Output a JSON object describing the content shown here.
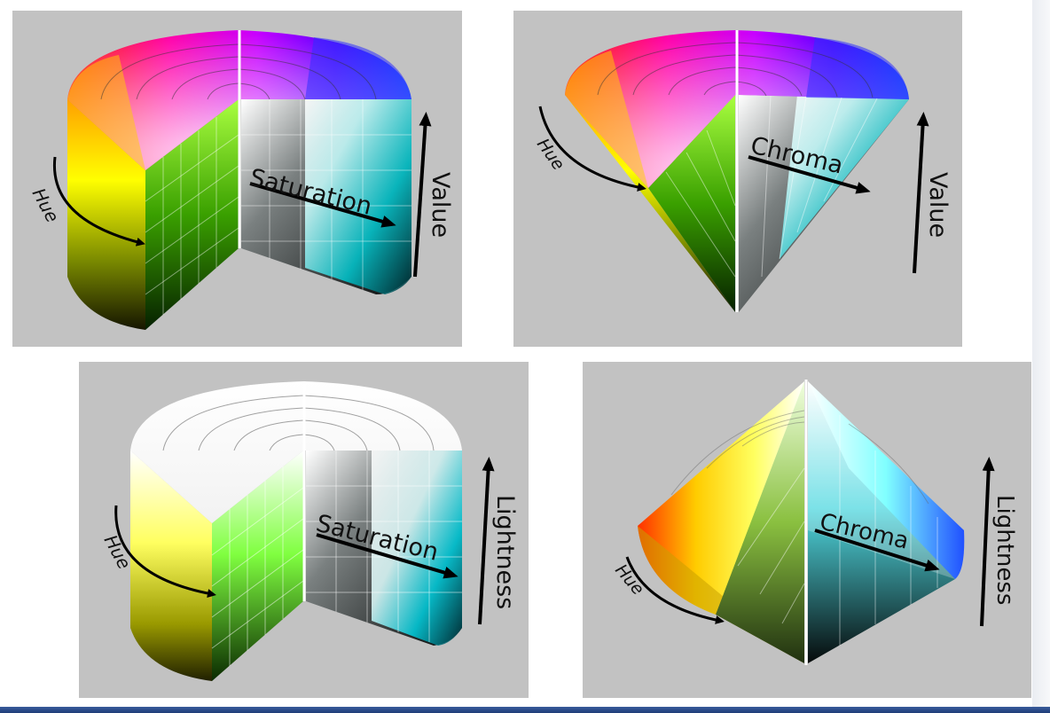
{
  "panels": [
    {
      "model": "HSV cylinder",
      "hue_label": "Hue",
      "radial_label": "Saturation",
      "vertical_label": "Value"
    },
    {
      "model": "HSV cone",
      "hue_label": "Hue",
      "radial_label": "Chroma",
      "vertical_label": "Value"
    },
    {
      "model": "HSL cylinder",
      "hue_label": "Hue",
      "radial_label": "Saturation",
      "vertical_label": "Lightness"
    },
    {
      "model": "HSL bicone",
      "hue_label": "Hue",
      "radial_label": "Chroma",
      "vertical_label": "Lightness"
    }
  ],
  "colors": {
    "panel_background": "#c2c2c2",
    "bottom_bar": "#1e3c78",
    "red": "#ff0000",
    "yellow": "#ffff00",
    "green": "#00ff00",
    "cyan": "#00ffff",
    "blue": "#0000ff",
    "magenta": "#ff00ff"
  },
  "icons": [
    "up-arrow-icon",
    "right-arrow-icon",
    "curved-arrow-icon"
  ]
}
